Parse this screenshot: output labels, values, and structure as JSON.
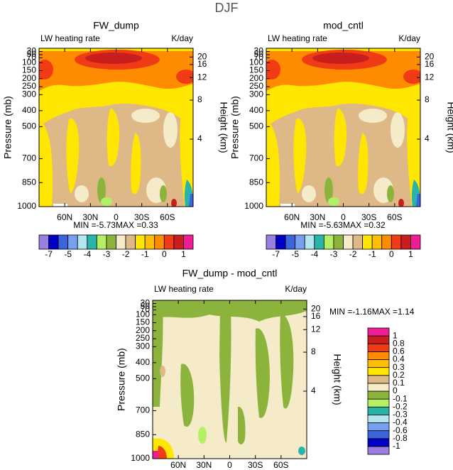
{
  "title": "DJF",
  "chart_data": [
    {
      "type": "contour",
      "title": "FW_dump",
      "subtitle_left": "LW heating rate",
      "subtitle_right": "K/day",
      "y_label": "Pressure (mb)",
      "y2_label": "Height (km)",
      "xlim": [
        90,
        -90
      ],
      "xticks": [
        {
          "value": 60,
          "label": "60N"
        },
        {
          "value": 30,
          "label": "30N"
        },
        0,
        {
          "value": -30,
          "label": "30S"
        },
        {
          "value": -60,
          "label": "60S"
        }
      ],
      "ylim": [
        1000,
        10
      ],
      "yticks": [
        30,
        50,
        70,
        100,
        150,
        200,
        250,
        300,
        400,
        500,
        700,
        850,
        1000
      ],
      "y2ticks": [
        4,
        8,
        12,
        16,
        20
      ],
      "min_label": "MIN =",
      "min": -5.73,
      "max_label": "MAX =",
      "max": 0.33,
      "colorbar": {
        "orientation": "horizontal",
        "colors": [
          "#9b7fe0",
          "#0000c8",
          "#3c64dc",
          "#78a0f0",
          "#b4e6f0",
          "#28b4aa",
          "#b4f064",
          "#8cb43c",
          "#f5ebc8",
          "#deb887",
          "#ffe600",
          "#ffbe00",
          "#ff8c00",
          "#f03c14",
          "#c81e1e",
          "#f01e96"
        ],
        "labels": [
          -7,
          -5,
          -4,
          -3,
          -2,
          -1,
          0,
          1
        ]
      }
    },
    {
      "type": "contour",
      "title": "mod_cntl",
      "subtitle_left": "LW heating rate",
      "subtitle_right": "K/day",
      "y_label": "Pressure (mb)",
      "y2_label": "Height (km)",
      "xlim": [
        90,
        -90
      ],
      "xticks": [
        {
          "value": 60,
          "label": "60N"
        },
        {
          "value": 30,
          "label": "30N"
        },
        0,
        {
          "value": -30,
          "label": "30S"
        },
        {
          "value": -60,
          "label": "60S"
        }
      ],
      "ylim": [
        1000,
        10
      ],
      "yticks": [
        30,
        50,
        70,
        100,
        150,
        200,
        250,
        300,
        400,
        500,
        700,
        850,
        1000
      ],
      "y2ticks": [
        4,
        8,
        12,
        16,
        20
      ],
      "min_label": "MIN =",
      "min": -5.63,
      "max_label": "MAX =",
      "max": 0.32,
      "colorbar": {
        "orientation": "horizontal",
        "colors": [
          "#9b7fe0",
          "#0000c8",
          "#3c64dc",
          "#78a0f0",
          "#b4e6f0",
          "#28b4aa",
          "#b4f064",
          "#8cb43c",
          "#f5ebc8",
          "#deb887",
          "#ffe600",
          "#ffbe00",
          "#ff8c00",
          "#f03c14",
          "#c81e1e",
          "#f01e96"
        ],
        "labels": [
          -7,
          -5,
          -4,
          -3,
          -2,
          -1,
          0,
          1
        ]
      }
    },
    {
      "type": "contour",
      "title": "FW_dump - mod_cntl",
      "subtitle_left": "LW heating rate",
      "subtitle_right": "K/day",
      "y_label": "Pressure (mb)",
      "y2_label": "Height (km)",
      "xlim": [
        90,
        -90
      ],
      "xticks": [
        {
          "value": 60,
          "label": "60N"
        },
        {
          "value": 30,
          "label": "30N"
        },
        0,
        {
          "value": -30,
          "label": "30S"
        },
        {
          "value": -60,
          "label": "60S"
        }
      ],
      "ylim": [
        1000,
        10
      ],
      "yticks": [
        30,
        50,
        70,
        100,
        150,
        200,
        250,
        300,
        400,
        500,
        700,
        850,
        1000
      ],
      "y2ticks": [
        4,
        8,
        12,
        16,
        20
      ],
      "min_label": "MIN =",
      "min": -1.16,
      "max_label": "MAX =",
      "max": 1.14,
      "colorbar": {
        "orientation": "vertical",
        "colors": [
          "#9b7fe0",
          "#0000c8",
          "#3c64dc",
          "#78a0f0",
          "#b4e6f0",
          "#28b4aa",
          "#b4f064",
          "#8cb43c",
          "#f5ebc8",
          "#deb887",
          "#ffe600",
          "#ffbe00",
          "#ff8c00",
          "#f03c14",
          "#c81e1e",
          "#f01e96"
        ],
        "labels": [
          -1,
          -0.8,
          -0.6,
          -0.4,
          -0.3,
          -0.2,
          -0.1,
          0,
          0.1,
          0.2,
          0.3,
          0.4,
          0.6,
          0.8,
          1
        ]
      }
    }
  ]
}
